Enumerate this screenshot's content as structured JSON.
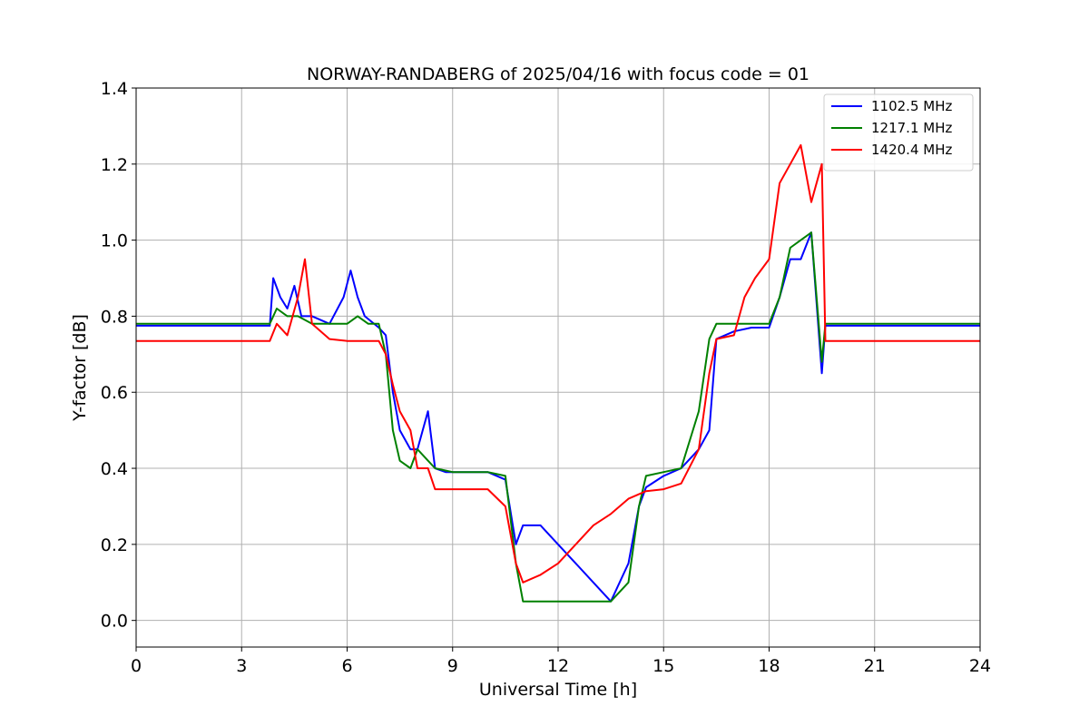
{
  "chart_data": {
    "type": "line",
    "title": "NORWAY-RANDABERG of 2025/04/16 with focus code = 01",
    "xlabel": "Universal Time [h]",
    "ylabel": "Y-factor [dB]",
    "xlim": [
      0,
      24
    ],
    "ylim": [
      -0.07,
      1.4
    ],
    "xticks": [
      0,
      3,
      6,
      9,
      12,
      15,
      18,
      21,
      24
    ],
    "xtick_labels": [
      "0",
      "3",
      "6",
      "9",
      "12",
      "15",
      "18",
      "21",
      "24"
    ],
    "yticks": [
      0.0,
      0.2,
      0.4,
      0.6,
      0.8,
      1.0,
      1.2,
      1.4
    ],
    "ytick_labels": [
      "0.0",
      "0.2",
      "0.4",
      "0.6",
      "0.8",
      "1.0",
      "1.2",
      "1.4"
    ],
    "grid": true,
    "legend_position": "top-right",
    "series": [
      {
        "name": "1102.5 MHz",
        "color": "#0000ff",
        "x": [
          0,
          3.8,
          3.9,
          4.1,
          4.3,
          4.5,
          4.7,
          5.0,
          5.5,
          5.9,
          6.1,
          6.3,
          6.5,
          6.9,
          7.1,
          7.3,
          7.5,
          7.8,
          8.0,
          8.3,
          8.5,
          8.8,
          9.0,
          10.0,
          10.5,
          10.8,
          11.0,
          11.5,
          12.0,
          12.5,
          13.0,
          13.5,
          14.0,
          14.3,
          14.5,
          15.0,
          15.5,
          16.0,
          16.3,
          16.5,
          17.0,
          17.5,
          18.0,
          18.3,
          18.6,
          18.9,
          19.2,
          19.5,
          19.6,
          24
        ],
        "y": [
          0.775,
          0.775,
          0.9,
          0.85,
          0.82,
          0.88,
          0.8,
          0.8,
          0.78,
          0.85,
          0.92,
          0.85,
          0.8,
          0.77,
          0.75,
          0.6,
          0.5,
          0.45,
          0.45,
          0.55,
          0.4,
          0.39,
          0.39,
          0.39,
          0.37,
          0.2,
          0.25,
          0.25,
          0.2,
          0.15,
          0.1,
          0.05,
          0.15,
          0.3,
          0.35,
          0.38,
          0.4,
          0.45,
          0.5,
          0.74,
          0.76,
          0.77,
          0.77,
          0.85,
          0.95,
          0.95,
          1.02,
          0.65,
          0.775,
          0.775
        ]
      },
      {
        "name": "1217.1 MHz",
        "color": "#008000",
        "x": [
          0,
          3.8,
          4.0,
          4.3,
          4.6,
          5.0,
          5.5,
          6.0,
          6.3,
          6.6,
          6.9,
          7.1,
          7.3,
          7.5,
          7.8,
          8.0,
          8.5,
          9.0,
          10.0,
          10.5,
          10.8,
          11.0,
          11.5,
          12.0,
          12.5,
          13.0,
          13.5,
          14.0,
          14.3,
          14.5,
          15.0,
          15.5,
          16.0,
          16.3,
          16.5,
          17.0,
          17.5,
          18.0,
          18.3,
          18.6,
          18.9,
          19.2,
          19.5,
          19.6,
          24
        ],
        "y": [
          0.78,
          0.78,
          0.82,
          0.8,
          0.8,
          0.78,
          0.78,
          0.78,
          0.8,
          0.78,
          0.78,
          0.7,
          0.5,
          0.42,
          0.4,
          0.45,
          0.4,
          0.39,
          0.39,
          0.38,
          0.15,
          0.05,
          0.05,
          0.05,
          0.05,
          0.05,
          0.05,
          0.1,
          0.3,
          0.38,
          0.39,
          0.4,
          0.55,
          0.74,
          0.78,
          0.78,
          0.78,
          0.78,
          0.85,
          0.98,
          1.0,
          1.02,
          0.68,
          0.78,
          0.78
        ]
      },
      {
        "name": "1420.4 MHz",
        "color": "#ff0000",
        "x": [
          0,
          3.8,
          4.0,
          4.3,
          4.6,
          4.8,
          5.0,
          5.5,
          6.0,
          6.5,
          6.9,
          7.1,
          7.3,
          7.5,
          7.8,
          8.0,
          8.3,
          8.5,
          9.0,
          10.0,
          10.5,
          10.8,
          11.0,
          11.5,
          12.0,
          12.5,
          13.0,
          13.5,
          14.0,
          14.5,
          15.0,
          15.5,
          16.0,
          16.3,
          16.5,
          17.0,
          17.3,
          17.6,
          18.0,
          18.3,
          18.6,
          18.9,
          19.2,
          19.5,
          19.6,
          24
        ],
        "y": [
          0.735,
          0.735,
          0.78,
          0.75,
          0.85,
          0.95,
          0.78,
          0.74,
          0.735,
          0.735,
          0.735,
          0.7,
          0.62,
          0.55,
          0.5,
          0.4,
          0.4,
          0.345,
          0.345,
          0.345,
          0.3,
          0.15,
          0.1,
          0.12,
          0.15,
          0.2,
          0.25,
          0.28,
          0.32,
          0.34,
          0.345,
          0.36,
          0.45,
          0.65,
          0.74,
          0.75,
          0.85,
          0.9,
          0.95,
          1.15,
          1.2,
          1.25,
          1.1,
          1.2,
          0.735,
          0.735
        ]
      }
    ]
  }
}
